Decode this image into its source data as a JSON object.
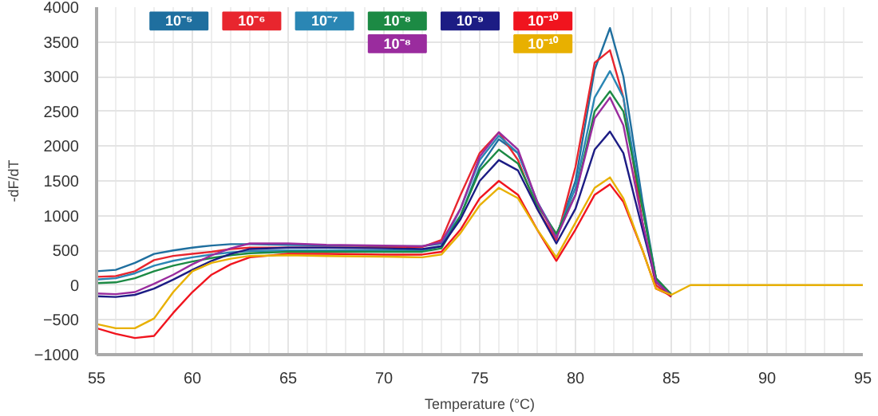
{
  "chart_data": {
    "type": "line",
    "xlabel": "Temperature (°C)",
    "ylabel": "-dF/dT",
    "xlim": [
      55,
      95
    ],
    "ylim": [
      -1000,
      4000
    ],
    "xticks": [
      55,
      60,
      65,
      70,
      75,
      80,
      85,
      90,
      95
    ],
    "yticks": [
      -1000,
      -500,
      0,
      500,
      1000,
      1500,
      2000,
      2500,
      3000,
      3500,
      4000
    ],
    "grid": true,
    "legend": "top left",
    "marker": "none",
    "line_style": "solid",
    "x": [
      55,
      56,
      57,
      58,
      59,
      60,
      61,
      62,
      63,
      65,
      67,
      70,
      72,
      73,
      74,
      75,
      76,
      77,
      78,
      79,
      80,
      81,
      81.8,
      82.5,
      83.5,
      84.2,
      85,
      86,
      88,
      90,
      95
    ],
    "series": [
      {
        "name": "10⁻⁵",
        "color": "#1f6f9f",
        "values": [
          200,
          220,
          320,
          450,
          500,
          540,
          570,
          590,
          590,
          580,
          570,
          560,
          560,
          600,
          1000,
          1700,
          2100,
          1900,
          1200,
          700,
          1500,
          3100,
          3700,
          3000,
          1200,
          100,
          -150,
          null,
          null,
          null,
          null
        ]
      },
      {
        "name": "10⁻⁶",
        "color": "#e8262e",
        "values": [
          120,
          130,
          200,
          360,
          420,
          450,
          480,
          520,
          540,
          540,
          540,
          540,
          550,
          650,
          1300,
          1900,
          2200,
          1800,
          1100,
          650,
          1700,
          3200,
          3380,
          2700,
          900,
          0,
          -170,
          null,
          null,
          null,
          null
        ]
      },
      {
        "name": "10⁻⁷",
        "color": "#2a86b4",
        "values": [
          80,
          100,
          170,
          280,
          350,
          400,
          440,
          470,
          490,
          500,
          500,
          500,
          500,
          560,
          1100,
          1800,
          2150,
          1900,
          1200,
          720,
          1400,
          2700,
          3080,
          2700,
          1100,
          100,
          -140,
          null,
          null,
          null,
          null
        ]
      },
      {
        "name": "10⁻⁸",
        "color": "#1c8a44",
        "values": [
          30,
          40,
          100,
          200,
          280,
          340,
          390,
          430,
          460,
          480,
          480,
          480,
          480,
          530,
          1000,
          1650,
          1950,
          1750,
          1150,
          740,
          1300,
          2500,
          2790,
          2500,
          1100,
          100,
          -130,
          null,
          null,
          null,
          null
        ]
      },
      {
        "name": "10⁻⁹",
        "color": "#1c1c84",
        "values": [
          -160,
          -170,
          -140,
          -50,
          80,
          220,
          350,
          450,
          520,
          540,
          540,
          530,
          520,
          560,
          950,
          1500,
          1800,
          1650,
          1100,
          600,
          1100,
          1950,
          2210,
          1900,
          800,
          50,
          -160,
          null,
          null,
          null,
          null
        ]
      },
      {
        "name": "10⁻¹⁰",
        "color": "#f0141e",
        "values": [
          -620,
          -700,
          -760,
          -730,
          -400,
          -100,
          150,
          300,
          400,
          450,
          450,
          440,
          440,
          480,
          800,
          1250,
          1500,
          1300,
          800,
          350,
          800,
          1300,
          1450,
          1200,
          500,
          -50,
          -150,
          null,
          null,
          null,
          null
        ]
      },
      {
        "name": "10⁻⁸",
        "color": "#9a2c9e",
        "values": [
          -120,
          -130,
          -100,
          20,
          150,
          300,
          430,
          530,
          600,
          600,
          580,
          570,
          560,
          620,
          1100,
          1850,
          2200,
          1950,
          1200,
          680,
          1300,
          2400,
          2700,
          2300,
          900,
          50,
          -150,
          null,
          null,
          null,
          null
        ]
      },
      {
        "name": "10⁻¹⁰",
        "color": "#e8b000",
        "values": [
          -560,
          -620,
          -620,
          -480,
          -100,
          200,
          320,
          380,
          420,
          430,
          420,
          410,
          400,
          440,
          750,
          1150,
          1400,
          1250,
          800,
          400,
          900,
          1400,
          1550,
          1250,
          500,
          -50,
          -140,
          0,
          0,
          0,
          0
        ]
      }
    ]
  }
}
